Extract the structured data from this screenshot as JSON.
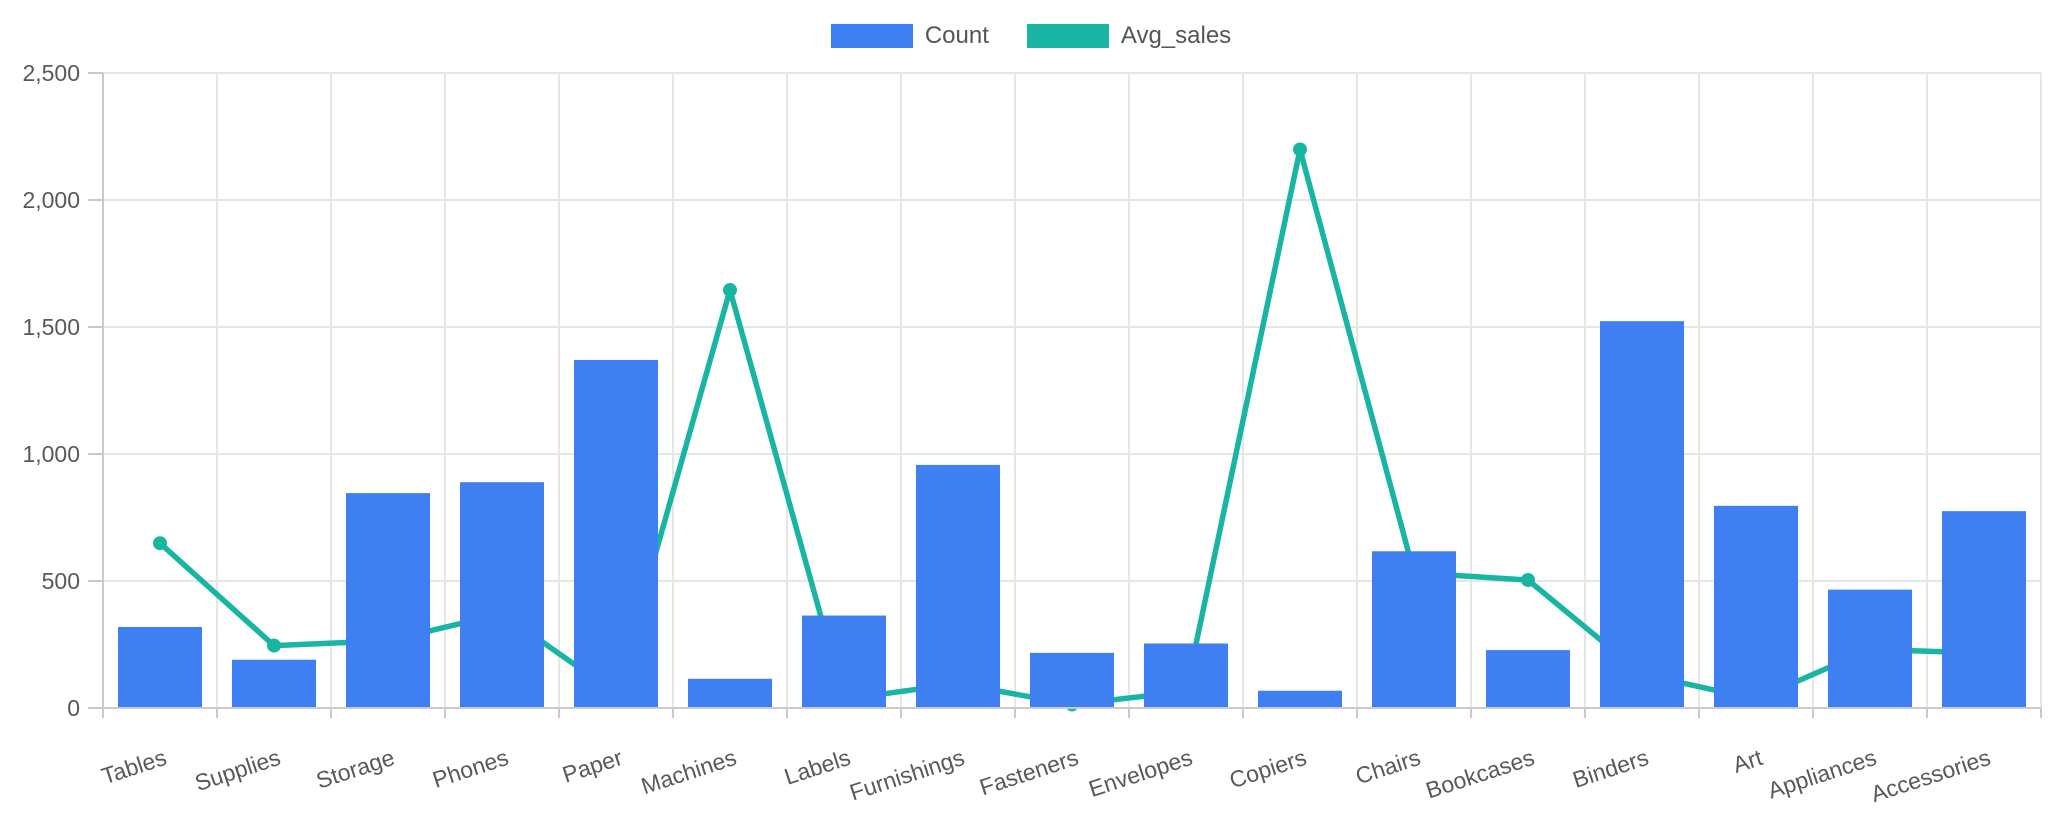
{
  "chart_data": {
    "type": "combo",
    "categories": [
      "Tables",
      "Supplies",
      "Storage",
      "Phones",
      "Paper",
      "Machines",
      "Labels",
      "Furnishings",
      "Fasteners",
      "Envelopes",
      "Copiers",
      "Chairs",
      "Bookcases",
      "Binders",
      "Art",
      "Appliances",
      "Accessories"
    ],
    "series": [
      {
        "name": "Count",
        "type": "bar",
        "color": "#3E7FF2",
        "values": [
          319,
          190,
          846,
          889,
          1370,
          115,
          364,
          957,
          217,
          254,
          68,
          617,
          228,
          1523,
          796,
          466,
          775
        ]
      },
      {
        "name": "Avg_sales",
        "type": "line",
        "color": "#18B5A3",
        "values": [
          648.8,
          245.7,
          264.6,
          371.2,
          57.3,
          1645.6,
          34.3,
          95.8,
          13.9,
          64.9,
          2198.9,
          532.3,
          503.9,
          133.6,
          34.1,
          230.8,
          216.0
        ]
      }
    ],
    "title": "",
    "xlabel": "",
    "ylabel": "",
    "ylim": [
      0,
      2500
    ],
    "y_ticks": [
      0,
      500,
      1000,
      1500,
      2000,
      2500
    ],
    "y_tick_labels": [
      "0",
      "500",
      "1,000",
      "1,500",
      "2,000",
      "2,500"
    ],
    "grid": true,
    "legend_position": "top"
  },
  "legend": {
    "items": [
      {
        "label": "Count",
        "color": "#3E7FF2"
      },
      {
        "label": "Avg_sales",
        "color": "#18B5A3"
      }
    ]
  },
  "style": {
    "grid_color": "#E6E6E6",
    "axis_color": "#C9C9C9",
    "text_color": "#595959"
  }
}
